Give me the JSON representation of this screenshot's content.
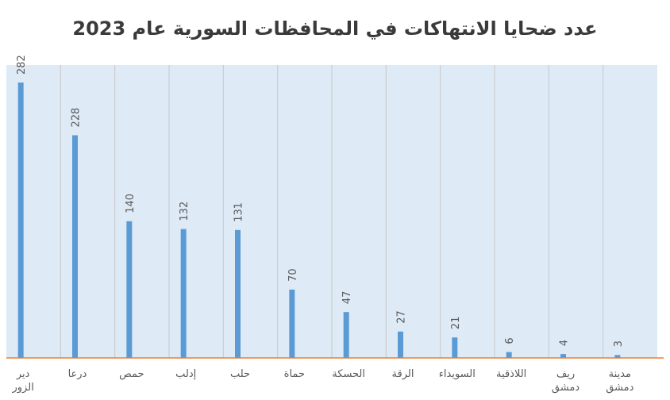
{
  "chart_data": {
    "type": "bar",
    "title": "عدد ضحايا الانتهاكات في المحافظات السورية عام 2023",
    "categories": [
      [
        "دير",
        "الزور"
      ],
      [
        "درعا"
      ],
      [
        "حمص"
      ],
      [
        "إدلب"
      ],
      [
        "حلب"
      ],
      [
        "حماة"
      ],
      [
        "الحسكة"
      ],
      [
        "الرقة"
      ],
      [
        "السويداء"
      ],
      [
        "اللاذقية"
      ],
      [
        "ريف",
        "دمشق"
      ],
      [
        "مدينة",
        "دمشق"
      ]
    ],
    "values": [
      282,
      228,
      140,
      132,
      131,
      70,
      47,
      27,
      21,
      6,
      4,
      3
    ],
    "ylim": [
      0,
      282
    ],
    "grid": false,
    "colors": {
      "bar": "#5b9bd5",
      "plot_bg": "#deeaf6",
      "baseline": "#ed7d31",
      "divider": "#c8c8c8"
    }
  }
}
